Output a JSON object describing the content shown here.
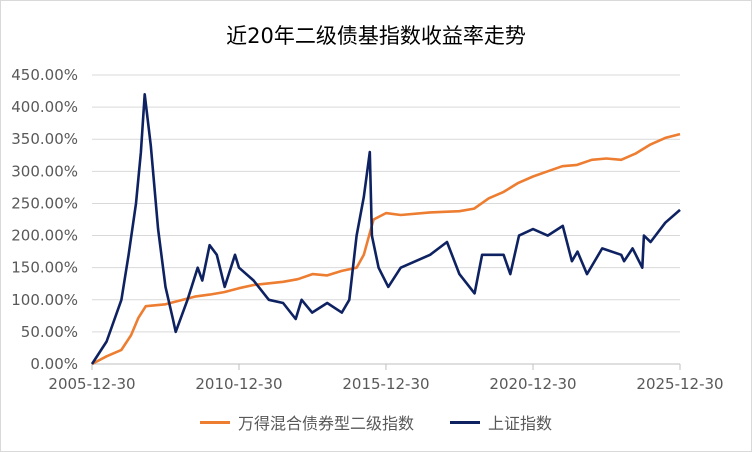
{
  "chart_data": {
    "type": "line",
    "title": "近20年二级债基指数收益率走势",
    "xlabel": "",
    "ylabel": "",
    "x_ticks": [
      "2005-12-30",
      "2010-12-30",
      "2015-12-30",
      "2020-12-30",
      "2025-12-30"
    ],
    "y_ticks": [
      "0.00%",
      "50.00%",
      "100.00%",
      "150.00%",
      "200.00%",
      "250.00%",
      "300.00%",
      "350.00%",
      "400.00%",
      "450.00%"
    ],
    "xlim": [
      "2005-12-30",
      "2025-12-30"
    ],
    "ylim": [
      0,
      450
    ],
    "grid": "horizontal",
    "legend_position": "bottom",
    "colors": {
      "bond": "#ED7D31",
      "sse": "#0E2262",
      "grid": "#d9d9d9",
      "axis": "#bfbfbf"
    },
    "series": [
      {
        "name": "万得混合债券型二级指数",
        "color": "#ED7D31",
        "x": [
          "2005-12-30",
          "2006-06-30",
          "2006-12-30",
          "2007-04-30",
          "2007-07-30",
          "2007-10-30",
          "2008-06-30",
          "2009-06-30",
          "2009-12-30",
          "2010-06-30",
          "2010-12-30",
          "2011-06-30",
          "2012-06-30",
          "2012-12-30",
          "2013-06-30",
          "2013-12-30",
          "2014-06-30",
          "2014-12-30",
          "2015-03-30",
          "2015-06-15",
          "2015-07-30",
          "2015-12-30",
          "2016-06-30",
          "2017-06-30",
          "2018-06-30",
          "2018-12-30",
          "2019-06-30",
          "2019-12-30",
          "2020-06-30",
          "2020-12-30",
          "2021-06-30",
          "2021-12-30",
          "2022-06-30",
          "2022-12-30",
          "2023-06-30",
          "2023-12-30",
          "2024-06-30",
          "2024-12-30",
          "2025-06-30",
          "2025-12-30"
        ],
        "y": [
          0,
          12,
          22,
          45,
          72,
          90,
          93,
          105,
          108,
          112,
          118,
          123,
          128,
          132,
          140,
          138,
          145,
          150,
          170,
          205,
          225,
          235,
          232,
          236,
          238,
          242,
          258,
          268,
          282,
          292,
          300,
          308,
          310,
          318,
          320,
          318,
          328,
          342,
          352,
          358
        ]
      },
      {
        "name": "上证指数",
        "color": "#0E2262",
        "x": [
          "2005-12-30",
          "2006-06-30",
          "2006-12-30",
          "2007-03-30",
          "2007-06-30",
          "2007-08-30",
          "2007-10-16",
          "2007-12-30",
          "2008-03-30",
          "2008-06-30",
          "2008-09-30",
          "2008-11-04",
          "2009-03-30",
          "2009-08-04",
          "2009-09-30",
          "2009-12-30",
          "2010-03-30",
          "2010-07-05",
          "2010-11-10",
          "2010-12-30",
          "2011-06-30",
          "2012-01-05",
          "2012-06-30",
          "2012-12-04",
          "2013-02-15",
          "2013-06-25",
          "2013-12-30",
          "2014-06-30",
          "2014-09-30",
          "2014-12-30",
          "2015-03-30",
          "2015-06-12",
          "2015-07-08",
          "2015-09-30",
          "2016-01-28",
          "2016-06-30",
          "2017-06-30",
          "2018-01-26",
          "2018-06-30",
          "2019-01-04",
          "2019-04-08",
          "2019-12-30",
          "2020-03-23",
          "2020-07-09",
          "2020-12-30",
          "2021-06-30",
          "2022-01-04",
          "2022-04-27",
          "2022-07-05",
          "2022-10-31",
          "2023-05-09",
          "2023-12-30",
          "2024-02-05",
          "2024-05-20",
          "2024-09-18",
          "2024-10-08",
          "2024-12-30",
          "2025-06-30",
          "2025-12-30"
        ],
        "y": [
          0,
          35,
          100,
          170,
          250,
          330,
          420,
          340,
          210,
          120,
          70,
          50,
          100,
          150,
          130,
          185,
          170,
          120,
          170,
          150,
          130,
          100,
          95,
          70,
          100,
          80,
          95,
          80,
          100,
          200,
          260,
          330,
          200,
          150,
          120,
          150,
          170,
          190,
          140,
          110,
          170,
          170,
          140,
          200,
          210,
          200,
          215,
          160,
          175,
          140,
          180,
          170,
          160,
          180,
          150,
          200,
          190,
          220,
          240
        ]
      }
    ]
  }
}
